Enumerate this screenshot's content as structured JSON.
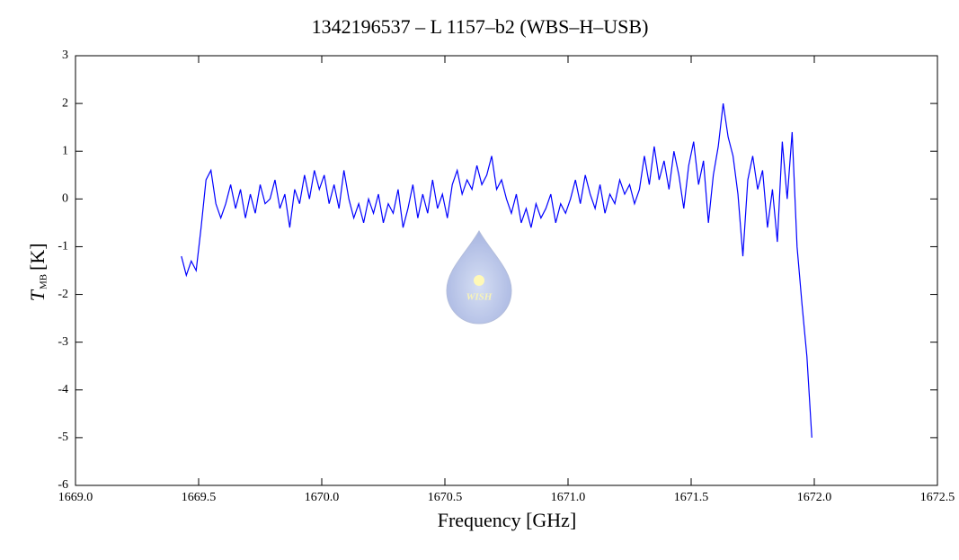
{
  "chart_data": {
    "type": "line",
    "title": "1342196537 – L 1157–b2 (WBS–H–USB)",
    "xlabel": "Frequency [GHz]",
    "ylabel": {
      "symbol": "T",
      "subscript": "MB",
      "unit": "[K]"
    },
    "watermark": "WISH",
    "color": "#0000ff",
    "xlim": [
      1669.0,
      1672.5
    ],
    "ylim": [
      -6,
      3
    ],
    "xticks": [
      {
        "value": 1669,
        "label": "1669.0"
      },
      {
        "value": 1669.5,
        "label": "1669.5"
      },
      {
        "value": 1670,
        "label": "1670.0"
      },
      {
        "value": 1670.5,
        "label": "1670.5"
      },
      {
        "value": 1671,
        "label": "1671.0"
      },
      {
        "value": 1671.5,
        "label": "1671.5"
      },
      {
        "value": 1672,
        "label": "1672.0"
      },
      {
        "value": 1672.5,
        "label": "1672.5"
      }
    ],
    "yticks": [
      3,
      2,
      1,
      0,
      -1,
      -2,
      -3,
      -4,
      -5,
      -6
    ],
    "x": [
      1669.43,
      1669.45,
      1669.47,
      1669.49,
      1669.51,
      1669.53,
      1669.55,
      1669.57,
      1669.59,
      1669.61,
      1669.63,
      1669.65,
      1669.67,
      1669.69,
      1669.71,
      1669.73,
      1669.75,
      1669.77,
      1669.79,
      1669.81,
      1669.83,
      1669.85,
      1669.87,
      1669.89,
      1669.91,
      1669.93,
      1669.95,
      1669.97,
      1669.99,
      1670.01,
      1670.03,
      1670.05,
      1670.07,
      1670.09,
      1670.11,
      1670.13,
      1670.15,
      1670.17,
      1670.19,
      1670.21,
      1670.23,
      1670.25,
      1670.27,
      1670.29,
      1670.31,
      1670.33,
      1670.35,
      1670.37,
      1670.39,
      1670.41,
      1670.43,
      1670.45,
      1670.47,
      1670.49,
      1670.51,
      1670.53,
      1670.55,
      1670.57,
      1670.59,
      1670.61,
      1670.63,
      1670.65,
      1670.67,
      1670.69,
      1670.71,
      1670.73,
      1670.75,
      1670.77,
      1670.79,
      1670.81,
      1670.83,
      1670.85,
      1670.87,
      1670.89,
      1670.91,
      1670.93,
      1670.95,
      1670.97,
      1670.99,
      1671.01,
      1671.03,
      1671.05,
      1671.07,
      1671.09,
      1671.11,
      1671.13,
      1671.15,
      1671.17,
      1671.19,
      1671.21,
      1671.23,
      1671.25,
      1671.27,
      1671.29,
      1671.31,
      1671.33,
      1671.35,
      1671.37,
      1671.39,
      1671.41,
      1671.43,
      1671.45,
      1671.47,
      1671.49,
      1671.51,
      1671.53,
      1671.55,
      1671.57,
      1671.59,
      1671.61,
      1671.63,
      1671.65,
      1671.67,
      1671.69,
      1671.71,
      1671.73,
      1671.75,
      1671.77,
      1671.79,
      1671.81,
      1671.83,
      1671.85,
      1671.87,
      1671.89,
      1671.91,
      1671.93,
      1671.95,
      1671.97,
      1671.99
    ],
    "values": [
      -1.2,
      -1.6,
      -1.3,
      -1.5,
      -0.6,
      0.4,
      0.6,
      -0.1,
      -0.4,
      -0.1,
      0.3,
      -0.2,
      0.2,
      -0.4,
      0.1,
      -0.3,
      0.3,
      -0.1,
      0.0,
      0.4,
      -0.2,
      0.1,
      -0.6,
      0.2,
      -0.1,
      0.5,
      0.0,
      0.6,
      0.2,
      0.5,
      -0.1,
      0.3,
      -0.2,
      0.6,
      0.0,
      -0.4,
      -0.1,
      -0.5,
      0.0,
      -0.3,
      0.1,
      -0.5,
      -0.1,
      -0.3,
      0.2,
      -0.6,
      -0.2,
      0.3,
      -0.4,
      0.1,
      -0.3,
      0.4,
      -0.2,
      0.1,
      -0.4,
      0.3,
      0.6,
      0.1,
      0.4,
      0.2,
      0.7,
      0.3,
      0.5,
      0.9,
      0.2,
      0.4,
      0.0,
      -0.3,
      0.1,
      -0.5,
      -0.2,
      -0.6,
      -0.1,
      -0.4,
      -0.2,
      0.1,
      -0.5,
      -0.1,
      -0.3,
      0.0,
      0.4,
      -0.1,
      0.5,
      0.1,
      -0.2,
      0.3,
      -0.3,
      0.1,
      -0.1,
      0.4,
      0.1,
      0.3,
      -0.1,
      0.2,
      0.9,
      0.3,
      1.1,
      0.4,
      0.8,
      0.2,
      1.0,
      0.5,
      -0.2,
      0.7,
      1.2,
      0.3,
      0.8,
      -0.5,
      0.5,
      1.1,
      2.0,
      1.3,
      0.9,
      0.1,
      -1.2,
      0.4,
      0.9,
      0.2,
      0.6,
      -0.6,
      0.2,
      -0.9,
      1.2,
      0.0,
      1.4,
      -1.0,
      -2.2,
      -3.3,
      -5.0
    ]
  }
}
